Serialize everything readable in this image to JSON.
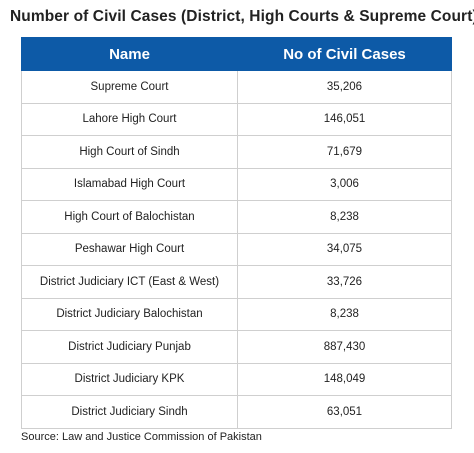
{
  "title": "Number of Civil Cases (District, High Courts & Supreme Court)",
  "table": {
    "headers": [
      "Name",
      "No of Civil Cases"
    ],
    "rows": [
      [
        "Supreme Court",
        "35,206"
      ],
      [
        "Lahore High Court",
        "146,051"
      ],
      [
        "High Court of Sindh",
        "71,679"
      ],
      [
        "Islamabad High Court",
        "3,006"
      ],
      [
        "High Court of Balochistan",
        "8,238"
      ],
      [
        "Peshawar High Court",
        "34,075"
      ],
      [
        "District Judiciary ICT (East & West)",
        "33,726"
      ],
      [
        "District Judiciary Balochistan",
        "8,238"
      ],
      [
        "District Judiciary Punjab",
        "887,430"
      ],
      [
        "District Judiciary KPK",
        "148,049"
      ],
      [
        "District Judiciary Sindh",
        "63,051"
      ]
    ]
  },
  "source": "Source: Law and Justice Commission of Pakistan",
  "colors": {
    "header_bg": "#0d5aa7",
    "header_text": "#ffffff",
    "border": "#cfcfcf"
  }
}
